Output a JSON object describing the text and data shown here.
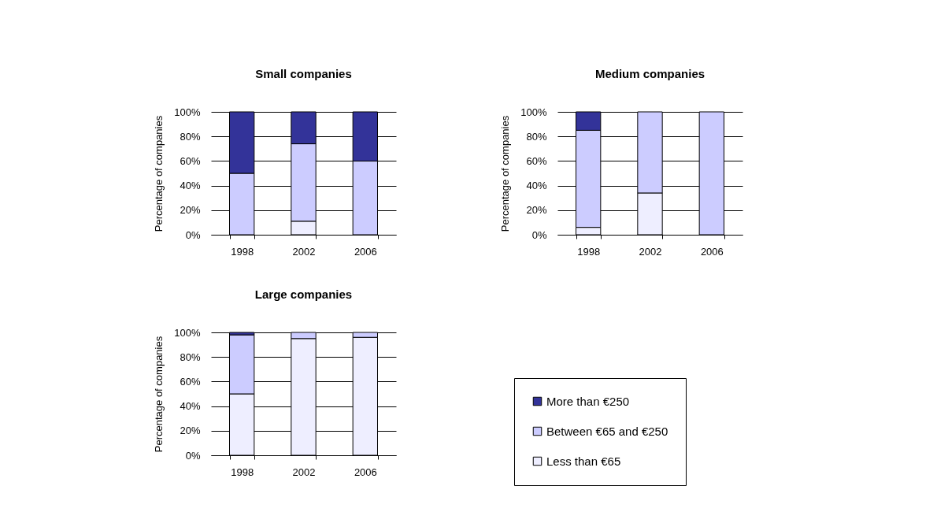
{
  "chart_data": [
    {
      "type": "bar",
      "title": "Small companies",
      "ylabel": "Percentage of companies",
      "categories": [
        "1998",
        "2002",
        "2006"
      ],
      "stacked": true,
      "ylim": [
        0,
        100
      ],
      "yticks": [
        {
          "value": 0,
          "label": "0%"
        },
        {
          "value": 20,
          "label": "20%"
        },
        {
          "value": 40,
          "label": "40%"
        },
        {
          "value": 60,
          "label": "60%"
        },
        {
          "value": 80,
          "label": "80%"
        },
        {
          "value": 100,
          "label": "100%"
        }
      ],
      "grid": "y",
      "series": [
        {
          "color": "#eeeeff",
          "values": [
            0,
            11,
            0
          ]
        },
        {
          "color": "#ccccff",
          "values": [
            50,
            63,
            60
          ]
        },
        {
          "color": "#333399",
          "values": [
            50,
            26,
            40
          ]
        }
      ]
    },
    {
      "type": "bar",
      "title": "Medium companies",
      "ylabel": "Percentage of companies",
      "categories": [
        "1998",
        "2002",
        "2006"
      ],
      "stacked": true,
      "ylim": [
        0,
        100
      ],
      "yticks": [
        {
          "value": 0,
          "label": "0%"
        },
        {
          "value": 20,
          "label": "20%"
        },
        {
          "value": 40,
          "label": "40%"
        },
        {
          "value": 60,
          "label": "60%"
        },
        {
          "value": 80,
          "label": "80%"
        },
        {
          "value": 100,
          "label": "100%"
        }
      ],
      "grid": "y",
      "series": [
        {
          "color": "#eeeeff",
          "values": [
            6,
            34,
            0
          ]
        },
        {
          "color": "#ccccff",
          "values": [
            79,
            66,
            100
          ]
        },
        {
          "color": "#333399",
          "values": [
            15,
            0,
            0
          ]
        }
      ]
    },
    {
      "type": "bar",
      "title": "Large companies",
      "ylabel": "Percentage of companies",
      "categories": [
        "1998",
        "2002",
        "2006"
      ],
      "stacked": true,
      "ylim": [
        0,
        100
      ],
      "yticks": [
        {
          "value": 0,
          "label": "0%"
        },
        {
          "value": 20,
          "label": "20%"
        },
        {
          "value": 40,
          "label": "40%"
        },
        {
          "value": 60,
          "label": "60%"
        },
        {
          "value": 80,
          "label": "80%"
        },
        {
          "value": 100,
          "label": "100%"
        }
      ],
      "grid": "y",
      "legend": "right",
      "series": [
        {
          "name": "Less than €65",
          "color": "#eeeeff",
          "values": [
            50,
            95,
            96
          ]
        },
        {
          "name": "Between €65 and €250",
          "color": "#ccccff",
          "values": [
            48,
            5,
            4
          ]
        },
        {
          "name": "More than €250",
          "color": "#333399",
          "values": [
            2,
            0,
            0
          ]
        }
      ]
    }
  ]
}
